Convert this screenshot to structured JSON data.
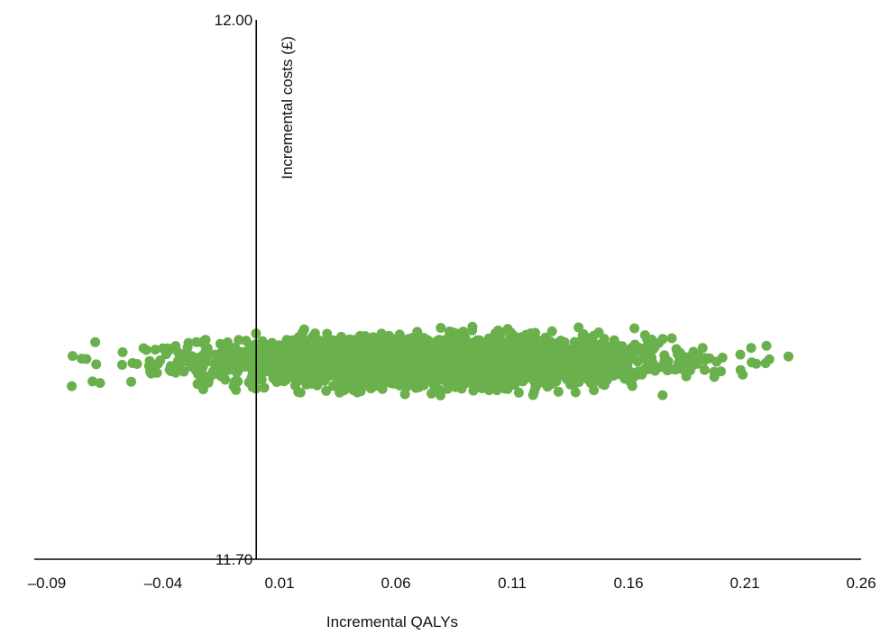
{
  "chart_data": {
    "type": "scatter",
    "xlabel": "Incremental QALYs",
    "ylabel": "Incremental costs (£)",
    "xlim": [
      -0.09,
      0.26
    ],
    "ylim": [
      11.7,
      12.0
    ],
    "x_ticks": [
      "–0.09",
      "–0.04",
      "0.01",
      "0.06",
      "0.11",
      "0.16",
      "0.21",
      "0.26"
    ],
    "y_ticks": [
      "11.70",
      "12.00"
    ],
    "y_axis_at_x": 0.0,
    "grid": false,
    "legend": "none",
    "marker_color": "#6ab04c",
    "series": [
      {
        "points_generated": 3000,
        "x_center": 0.075,
        "x_sd": 0.048,
        "y_center": 11.81,
        "y_sd": 0.0065,
        "x_range_observed": [
          -0.087,
          0.23
        ],
        "y_range_observed": [
          11.791,
          11.83
        ]
      }
    ]
  }
}
